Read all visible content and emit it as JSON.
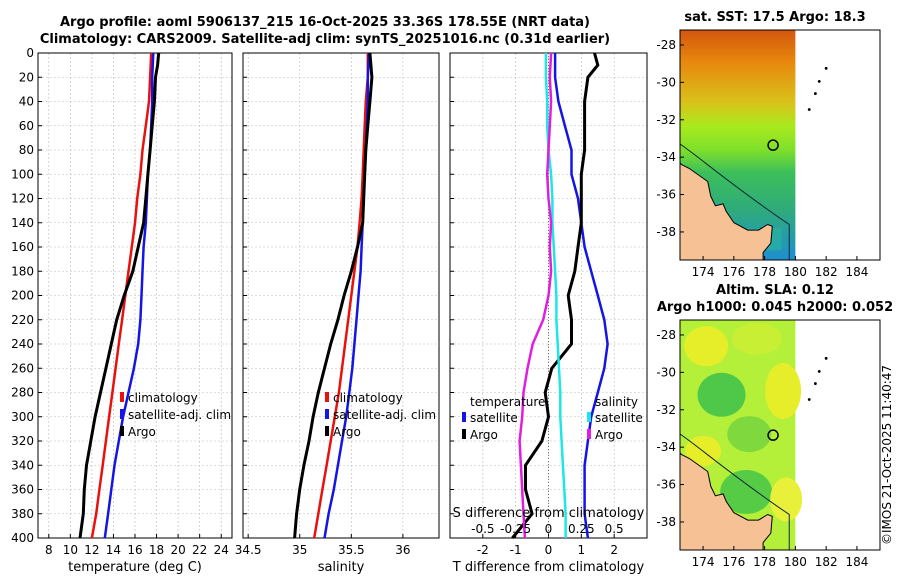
{
  "header": {
    "title_line1": "Argo profile: aoml 5906137_215 16-Oct-2025 33.36S 178.55E (NRT data)",
    "title_line2": "Climatology: CARS2009. Satellite-adj clim: synTS_20251016.nc (0.31d earlier)"
  },
  "footer": {
    "credit": "©IMOS 21-Oct-2025 11:40:47"
  },
  "colors": {
    "climatology": "#e8110e",
    "satellite": "#1414e6",
    "argo": "#000000",
    "s_satellite": "#1ee6e6",
    "s_argo": "#e01ee0",
    "land": "#f6c295",
    "grid": "#bdbdbd"
  },
  "chart_data": [
    {
      "type": "line",
      "name": "temperature-profile",
      "xlabel": "temperature (deg C)",
      "xlim": [
        7,
        25
      ],
      "xticks": [
        8,
        10,
        12,
        14,
        16,
        18,
        20,
        22,
        24
      ],
      "ylim": [
        0,
        400
      ],
      "yticks": [
        0,
        20,
        40,
        60,
        80,
        100,
        120,
        140,
        160,
        180,
        200,
        220,
        240,
        260,
        280,
        300,
        320,
        340,
        360,
        380,
        400
      ],
      "legend": [
        "climatology",
        "satellite-adj. clim",
        "Argo"
      ],
      "series": [
        {
          "name": "climatology",
          "depth": [
            0,
            20,
            40,
            60,
            80,
            100,
            120,
            140,
            160,
            180,
            200,
            220,
            240,
            260,
            280,
            300,
            320,
            340,
            360,
            380,
            400
          ],
          "values": [
            17.5,
            17.4,
            17.3,
            17.0,
            16.7,
            16.5,
            16.2,
            16.0,
            15.7,
            15.4,
            15.1,
            14.8,
            14.5,
            14.2,
            13.9,
            13.6,
            13.3,
            13.0,
            12.7,
            12.4,
            12.0
          ]
        },
        {
          "name": "satellite-adj. clim",
          "depth": [
            0,
            20,
            40,
            60,
            80,
            100,
            120,
            140,
            160,
            180,
            200,
            220,
            240,
            260,
            280,
            300,
            320,
            340,
            360,
            380,
            400
          ],
          "values": [
            17.7,
            17.6,
            17.6,
            17.5,
            17.4,
            17.2,
            17.1,
            17.0,
            16.8,
            16.7,
            16.6,
            16.5,
            16.3,
            15.9,
            15.4,
            14.9,
            14.5,
            14.1,
            13.8,
            13.5,
            13.2
          ]
        },
        {
          "name": "Argo",
          "depth": [
            0,
            10,
            20,
            40,
            60,
            80,
            100,
            120,
            140,
            160,
            180,
            200,
            220,
            240,
            260,
            280,
            300,
            320,
            340,
            360,
            380,
            400
          ],
          "values": [
            18.2,
            18.1,
            17.9,
            17.8,
            17.6,
            17.4,
            17.2,
            17.0,
            16.8,
            16.3,
            15.8,
            15.0,
            14.3,
            13.8,
            13.3,
            12.8,
            12.3,
            11.9,
            11.5,
            11.3,
            11.2,
            10.9
          ]
        }
      ]
    },
    {
      "type": "line",
      "name": "salinity-profile",
      "xlabel": "salinity",
      "xlim": [
        34.45,
        36.35
      ],
      "xticks": [
        34.5,
        35,
        35.5,
        36
      ],
      "xticklabels": [
        "34.5",
        "35",
        "35.5",
        "36"
      ],
      "ylim": [
        0,
        400
      ],
      "legend": [
        "climatology",
        "satellite-adj. clim",
        "Argo"
      ],
      "series": [
        {
          "name": "climatology",
          "depth": [
            0,
            20,
            40,
            60,
            80,
            100,
            120,
            140,
            160,
            180,
            200,
            220,
            240,
            260,
            280,
            300,
            320,
            340,
            360,
            380,
            400
          ],
          "values": [
            35.66,
            35.66,
            35.64,
            35.63,
            35.62,
            35.61,
            35.6,
            35.58,
            35.56,
            35.53,
            35.5,
            35.47,
            35.44,
            35.41,
            35.38,
            35.34,
            35.3,
            35.26,
            35.22,
            35.18,
            35.14
          ]
        },
        {
          "name": "satellite-adj. clim",
          "depth": [
            0,
            20,
            40,
            60,
            80,
            100,
            120,
            140,
            160,
            180,
            200,
            220,
            240,
            260,
            280,
            300,
            320,
            340,
            360,
            380,
            400
          ],
          "values": [
            35.67,
            35.66,
            35.66,
            35.65,
            35.64,
            35.63,
            35.62,
            35.61,
            35.6,
            35.59,
            35.57,
            35.55,
            35.53,
            35.51,
            35.48,
            35.45,
            35.41,
            35.37,
            35.33,
            35.28,
            35.24
          ]
        },
        {
          "name": "Argo",
          "depth": [
            0,
            10,
            20,
            40,
            60,
            80,
            100,
            120,
            140,
            160,
            180,
            200,
            220,
            240,
            260,
            280,
            300,
            320,
            340,
            360,
            380,
            400
          ],
          "values": [
            35.68,
            35.69,
            35.7,
            35.68,
            35.66,
            35.64,
            35.63,
            35.62,
            35.61,
            35.56,
            35.5,
            35.43,
            35.37,
            35.3,
            35.24,
            35.18,
            35.13,
            35.09,
            35.04,
            35.0,
            34.97,
            34.95
          ]
        }
      ]
    },
    {
      "type": "line",
      "name": "difference-profile",
      "xlabel": "T difference from climatology",
      "xlabel_top": "S difference from climatology",
      "xlim": [
        -3,
        3
      ],
      "xticks": [
        -2,
        -1,
        0,
        1,
        2
      ],
      "s_ticklabels": [
        "-0.5",
        "-0.25",
        "0",
        "0.25",
        "0.5"
      ],
      "ylim": [
        0,
        400
      ],
      "legend_temperature": {
        "title": "temperature",
        "items": [
          "satellite",
          "Argo"
        ]
      },
      "legend_salinity": {
        "title": "salinity",
        "items": [
          "satellite",
          "Argo"
        ]
      },
      "series": [
        {
          "name": "T satellite",
          "depth": [
            0,
            20,
            40,
            60,
            80,
            100,
            120,
            140,
            160,
            180,
            200,
            220,
            240,
            260,
            280,
            300,
            320,
            340,
            360,
            380,
            400
          ],
          "values": [
            0.2,
            0.2,
            0.3,
            0.5,
            0.7,
            0.7,
            0.9,
            1.0,
            1.1,
            1.3,
            1.5,
            1.7,
            1.8,
            1.7,
            1.5,
            1.3,
            1.2,
            1.1,
            1.1,
            1.1,
            1.2
          ]
        },
        {
          "name": "T Argo",
          "depth": [
            0,
            10,
            20,
            40,
            60,
            80,
            100,
            120,
            140,
            160,
            180,
            200,
            220,
            240,
            260,
            280,
            300,
            320,
            340,
            360,
            380,
            400
          ],
          "values": [
            1.4,
            1.5,
            1.2,
            1.1,
            1.1,
            1.1,
            1.0,
            1.0,
            1.0,
            0.9,
            0.8,
            0.6,
            0.7,
            0.7,
            0.1,
            -0.1,
            0.0,
            -0.2,
            -0.7,
            -0.7,
            -0.5,
            -1.1
          ]
        },
        {
          "name": "S satellite",
          "depth": [
            0,
            20,
            40,
            60,
            80,
            100,
            120,
            140,
            160,
            180,
            200,
            220,
            240,
            260,
            280,
            300,
            320,
            340,
            360,
            380,
            400
          ],
          "values": [
            -0.02,
            -0.02,
            -0.01,
            -0.01,
            0.0,
            0.02,
            0.03,
            0.03,
            0.04,
            0.05,
            0.06,
            0.06,
            0.07,
            0.08,
            0.09,
            0.09,
            0.1,
            0.11,
            0.12,
            0.13,
            0.13
          ]
        },
        {
          "name": "S Argo",
          "depth": [
            0,
            20,
            40,
            60,
            80,
            100,
            120,
            140,
            160,
            180,
            200,
            220,
            240,
            260,
            280,
            300,
            320,
            340,
            360,
            380,
            400
          ],
          "values": [
            0.02,
            0.01,
            0.02,
            0.01,
            0.0,
            -0.01,
            0.0,
            0.02,
            0.01,
            0.02,
            0.0,
            -0.04,
            -0.12,
            -0.16,
            -0.19,
            -0.2,
            -0.22,
            -0.21,
            -0.2,
            -0.19,
            -0.18
          ]
        }
      ]
    },
    {
      "type": "map",
      "name": "sst-map",
      "title": "sat. SST: 17.5 Argo: 18.3",
      "xlim": [
        172.5,
        185.5
      ],
      "ylim": [
        -39.5,
        -27.2
      ],
      "xticks": [
        174,
        176,
        178,
        180,
        182,
        184
      ],
      "yticks": [
        -28,
        -30,
        -32,
        -34,
        -36,
        -38
      ],
      "xticklabels": [
        "174",
        "176",
        "178",
        "180",
        "182",
        "184"
      ],
      "yticklabels": [
        "-28",
        "-30",
        "-32",
        "-34",
        "-36",
        "-38"
      ],
      "data_extent_lon": [
        172.5,
        180.0
      ],
      "argo_position": [
        178.55,
        -33.36
      ],
      "islands": [
        [
          182.0,
          -29.25
        ],
        [
          181.55,
          -29.95
        ],
        [
          181.3,
          -30.6
        ],
        [
          180.9,
          -31.45
        ]
      ]
    },
    {
      "type": "map",
      "name": "sla-map",
      "title": "Altim. SLA: 0.12",
      "subtitle": "Argo h1000: 0.045 h2000: 0.052",
      "xlim": [
        172.5,
        185.5
      ],
      "ylim": [
        -39.5,
        -27.2
      ],
      "xticks": [
        174,
        176,
        178,
        180,
        182,
        184
      ],
      "yticks": [
        -28,
        -30,
        -32,
        -34,
        -36,
        -38
      ],
      "xticklabels": [
        "174",
        "176",
        "178",
        "180",
        "182",
        "184"
      ],
      "yticklabels": [
        "-28",
        "-30",
        "-32",
        "-34",
        "-36",
        "-38"
      ],
      "data_extent_lon": [
        172.5,
        180.0
      ],
      "argo_position": [
        178.55,
        -33.36
      ],
      "islands": [
        [
          182.0,
          -29.25
        ],
        [
          181.55,
          -29.95
        ],
        [
          181.3,
          -30.6
        ],
        [
          180.9,
          -31.45
        ]
      ]
    }
  ]
}
